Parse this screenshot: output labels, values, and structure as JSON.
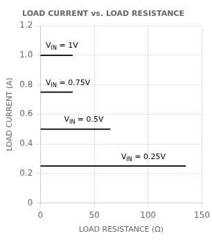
{
  "chart_data": {
    "type": "line",
    "title": "LOAD CURRENT vs. LOAD RESISTANCE",
    "xlabel": "LOAD RESISTANCE (Ω)",
    "ylabel": "LOAD CURRENT (A)",
    "xlim": [
      0,
      150
    ],
    "ylim": [
      0,
      1.2
    ],
    "xticks": [
      0,
      50,
      100,
      150
    ],
    "yticks": [
      0,
      0.2,
      0.4,
      0.6,
      0.8,
      {
        "value": 1.0,
        "label": "1.0"
      },
      1.2
    ],
    "grid": true,
    "color": "#1a1a1a",
    "series": [
      {
        "x": [
          0,
          30
        ],
        "values": [
          1.0,
          1.0
        ]
      },
      {
        "x": [
          0,
          30
        ],
        "values": [
          0.75,
          0.75
        ]
      },
      {
        "x": [
          0,
          65
        ],
        "values": [
          0.5,
          0.5
        ]
      },
      {
        "x": [
          0,
          135
        ],
        "values": [
          0.25,
          0.25
        ]
      }
    ],
    "annotations": [
      {
        "text": "VIN = 1V",
        "subscript": "IN",
        "x": 5,
        "y": 1.03
      },
      {
        "text": "VIN = 0.75V",
        "subscript": "IN",
        "x": 5,
        "y": 0.78
      },
      {
        "text": "VIN = 0.5V",
        "subscript": "IN",
        "x": 22,
        "y": 0.53
      },
      {
        "text": "VIN = 0.25V",
        "subscript": "IN",
        "x": 75,
        "y": 0.28
      }
    ]
  }
}
